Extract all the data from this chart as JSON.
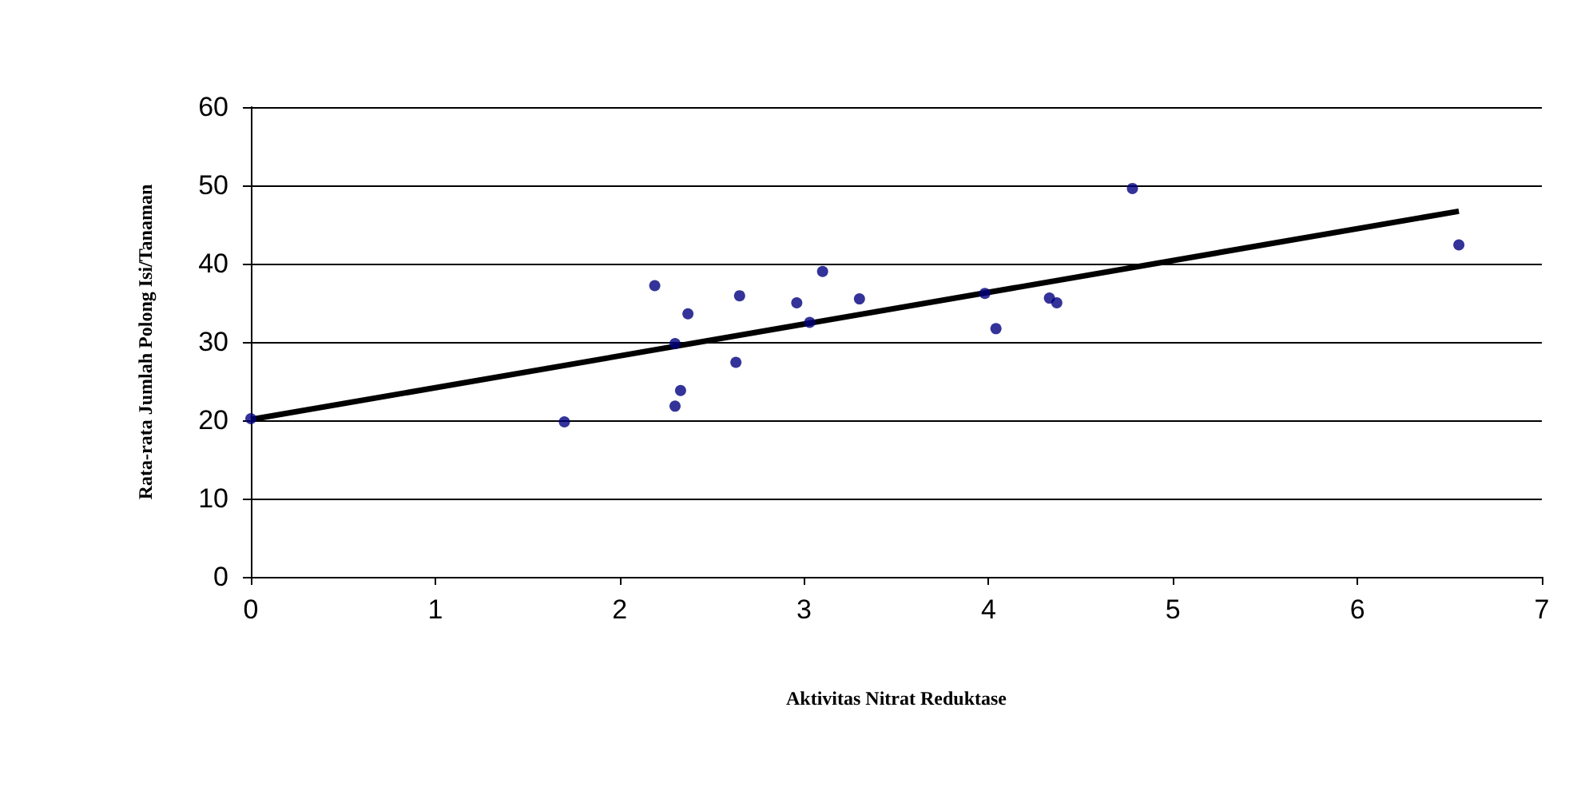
{
  "chart_data": {
    "type": "scatter",
    "xlabel": "Aktivitas Nitrat Reduktase",
    "ylabel": "Rata-rata Jumlah Polong Isi/Tanaman",
    "xlim": [
      0,
      7
    ],
    "xticks": [
      0,
      1,
      2,
      3,
      4,
      5,
      6,
      7
    ],
    "ylim": [
      0,
      60
    ],
    "yticks": [
      0,
      10,
      20,
      30,
      40,
      50,
      60
    ],
    "grid": "y",
    "marker": "circle",
    "series": [
      {
        "color": "#000080",
        "x": [
          0,
          1.7,
          2.19,
          2.3,
          2.3,
          2.33,
          2.37,
          2.63,
          2.65,
          2.96,
          3.03,
          3.1,
          3.3,
          3.98,
          4.04,
          4.33,
          4.37,
          4.78,
          6.55
        ],
        "values": [
          20.2,
          19.8,
          37.2,
          21.8,
          29.8,
          23.8,
          33.6,
          27.4,
          35.9,
          35,
          32.5,
          39,
          35.5,
          36.2,
          31.7,
          35.6,
          35,
          49.6,
          42.4
        ]
      },
      {
        "type": "line",
        "color": "#000000",
        "x": [
          0,
          6.55
        ],
        "values": [
          20.1,
          46.7
        ],
        "marker": "none",
        "line_style": "solid"
      }
    ]
  }
}
